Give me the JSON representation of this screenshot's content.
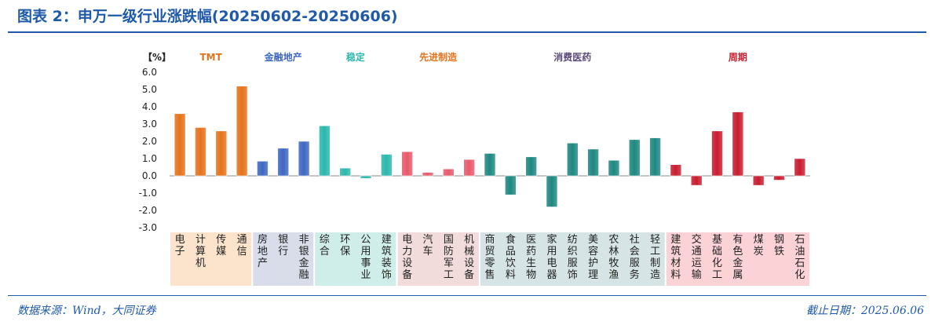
{
  "header": {
    "title": "图表 2：申万一级行业涨跌幅(20250602-20250606)"
  },
  "footer": {
    "source": "数据来源：Wind，大同证券",
    "date": "截止日期：2025.06.06"
  },
  "chart_data": {
    "type": "bar",
    "title": "",
    "unit_label": "【%】",
    "ylim": [
      -3.0,
      6.0
    ],
    "yticks": [
      "6.0",
      "5.0",
      "4.0",
      "3.0",
      "2.0",
      "1.0",
      "0.0",
      "-1.0",
      "-2.0",
      "-3.0"
    ],
    "categories": [
      "电子",
      "计算机",
      "传媒",
      "通信",
      "房地产",
      "银行",
      "非银金融",
      "综合",
      "环保",
      "公用事业",
      "建筑装饰",
      "电力设备",
      "汽车",
      "国防军工",
      "机械设备",
      "商贸零售",
      "食品饮料",
      "医药生物",
      "家用电器",
      "纺织服饰",
      "美容护理",
      "农林牧渔",
      "社会服务",
      "轻工制造",
      "建筑材料",
      "交通运输",
      "基础化工",
      "有色金属",
      "煤炭",
      "钢铁",
      "石油石化"
    ],
    "values": [
      3.6,
      2.8,
      2.6,
      5.2,
      0.85,
      1.6,
      2.0,
      2.9,
      0.45,
      -0.15,
      1.25,
      1.4,
      0.2,
      0.4,
      0.95,
      1.3,
      -1.1,
      1.1,
      -1.8,
      1.9,
      1.55,
      0.9,
      2.1,
      2.2,
      0.65,
      -0.55,
      2.6,
      3.7,
      -0.55,
      -0.25,
      1.0
    ],
    "groups": [
      {
        "name": "TMT",
        "start": 0,
        "end": 3,
        "color": "#e5731c",
        "bg": "#fbe3cc",
        "label_color": "#e5731c"
      },
      {
        "name": "金融地产",
        "start": 4,
        "end": 6,
        "color": "#3f68c2",
        "bg": "#d8dde9",
        "label_color": "#3f68c2"
      },
      {
        "name": "稳定",
        "start": 7,
        "end": 10,
        "color": "#2cb8ad",
        "bg": "#cfeeea",
        "label_color": "#2cb8ad"
      },
      {
        "name": "先进制造",
        "start": 11,
        "end": 14,
        "color": "#e85a6c",
        "bg": "#f1dcdb",
        "label_color": "#e5731c"
      },
      {
        "name": "消费医药",
        "start": 15,
        "end": 23,
        "color": "#1f8781",
        "bg": "#d6e4e6",
        "label_color": "#5a4a7a"
      },
      {
        "name": "周期",
        "start": 24,
        "end": 30,
        "color": "#c81e30",
        "bg": "#fbd3d6",
        "label_color": "#c81e30"
      }
    ]
  }
}
